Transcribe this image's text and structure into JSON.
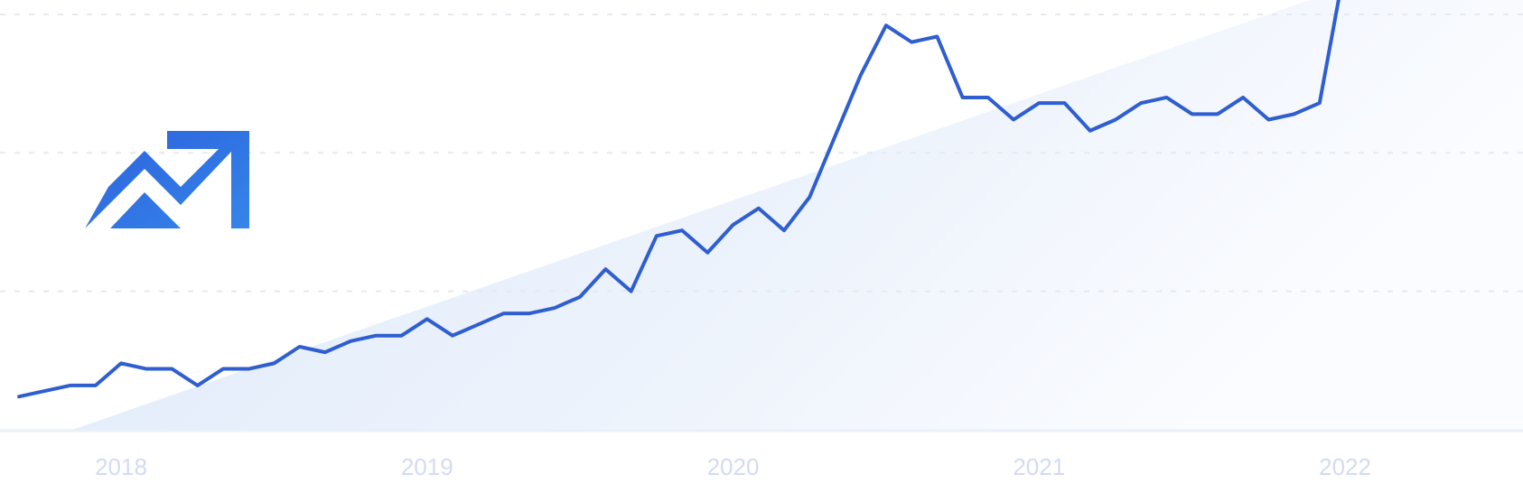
{
  "chart_data": {
    "type": "line",
    "title": "",
    "xlabel": "",
    "ylabel": "",
    "x_tick_labels": [
      "2018",
      "2019",
      "2020",
      "2021",
      "2022"
    ],
    "x": [
      "2017-09",
      "2017-10",
      "2017-11",
      "2017-12",
      "2018-01",
      "2018-02",
      "2018-03",
      "2018-04",
      "2018-05",
      "2018-06",
      "2018-07",
      "2018-08",
      "2018-09",
      "2018-10",
      "2018-11",
      "2018-12",
      "2019-01",
      "2019-02",
      "2019-03",
      "2019-04",
      "2019-05",
      "2019-06",
      "2019-07",
      "2019-08",
      "2019-09",
      "2019-10",
      "2019-11",
      "2019-12",
      "2020-01",
      "2020-02",
      "2020-03",
      "2020-04",
      "2020-05",
      "2020-06",
      "2020-07",
      "2020-08",
      "2020-09",
      "2020-10",
      "2020-11",
      "2020-12",
      "2021-01",
      "2021-02",
      "2021-03",
      "2021-04",
      "2021-05",
      "2021-06",
      "2021-07",
      "2021-08",
      "2021-09",
      "2021-10",
      "2021-11",
      "2021-12",
      "2022-01"
    ],
    "values": [
      6,
      7,
      8,
      8,
      12,
      11,
      11,
      8,
      11,
      11,
      12,
      15,
      14,
      16,
      17,
      17,
      20,
      17,
      19,
      21,
      21,
      22,
      24,
      29,
      25,
      35,
      36,
      32,
      37,
      40,
      36,
      42,
      53,
      64,
      73,
      70,
      71,
      60,
      60,
      56,
      59,
      59,
      54,
      56,
      59,
      60,
      57,
      57,
      60,
      56,
      57,
      59,
      84
    ],
    "ylim": [
      0,
      77.6
    ],
    "y_gridlines": [
      25,
      50,
      75
    ],
    "grid": true,
    "gridline_style": "dashed",
    "legend": "none",
    "colors": {
      "line": "#2f5ed0",
      "fill": "#e3edfb",
      "tick_label": "#d3dbf3",
      "grid": "#e6e9f0",
      "icon": "#2d6fe0"
    },
    "icon": "trending-up-icon"
  }
}
